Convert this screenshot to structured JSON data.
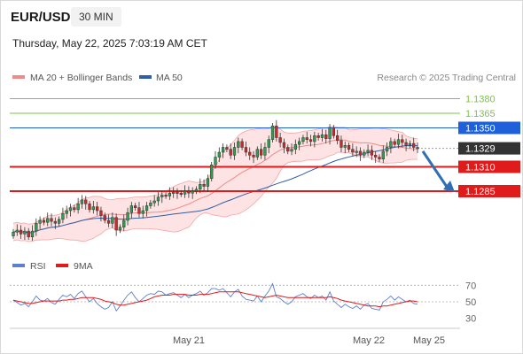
{
  "header": {
    "symbol": "EUR/USD",
    "timeframe": "30 MIN",
    "datetime": "Thursday, May 22, 2025 7:03:19 AM CET"
  },
  "research_note": "Research © 2025 Trading Central",
  "colors": {
    "bb_fill": "#fde3e3",
    "bb_edge": "#f5a5a5",
    "ma20": "#f08a8a",
    "ma50": "#2f5ea8",
    "candle_up": "#2e9e4f",
    "candle_down": "#cc2a2a",
    "resistance_green": "#7cc442",
    "pivot_blue": "#1f5fd8",
    "support_red": "#e01b1b",
    "current_price": "#333333",
    "arrow": "#2f6fb3",
    "rsi": "#5b7fd1",
    "rsi_ma": "#e01b1b"
  },
  "chart_data": [
    {
      "type": "candlestick",
      "title": "",
      "legend": [
        {
          "label": "MA 20 + Bollinger Bands",
          "color": "#f08a8a"
        },
        {
          "label": "MA 50",
          "color": "#2f5ea8"
        }
      ],
      "legend_position": "top-left",
      "ylim": [
        1.1215,
        1.1395
      ],
      "x_labels": [
        "May 21",
        "May 22",
        "May 25"
      ],
      "levels": [
        {
          "value": 1.138,
          "label": "1.1380",
          "kind": "resistance",
          "color": "#7cc442"
        },
        {
          "value": 1.1365,
          "label": "1.1365",
          "kind": "resistance",
          "color": "#7cc442"
        },
        {
          "value": 1.135,
          "label": "1.1350",
          "kind": "pivot",
          "color": "#1f5fd8"
        },
        {
          "value": 1.1329,
          "label": "1.1329",
          "kind": "current",
          "color": "#333333"
        },
        {
          "value": 1.131,
          "label": "1.1310",
          "kind": "support",
          "color": "#e01b1b"
        },
        {
          "value": 1.1285,
          "label": "1.1285",
          "kind": "support",
          "color": "#e01b1b"
        }
      ],
      "forecast_arrow": {
        "from": 1.1326,
        "to": 1.1285
      },
      "closes": [
        1.1243,
        1.1245,
        1.1241,
        1.1244,
        1.1238,
        1.1244,
        1.1252,
        1.1255,
        1.1253,
        1.1257,
        1.1254,
        1.1252,
        1.1256,
        1.1262,
        1.1265,
        1.1268,
        1.1266,
        1.1272,
        1.1276,
        1.1272,
        1.1266,
        1.1269,
        1.1265,
        1.126,
        1.1255,
        1.1252,
        1.1258,
        1.1245,
        1.1248,
        1.1255,
        1.1263,
        1.127,
        1.1268,
        1.1262,
        1.1265,
        1.127,
        1.1273,
        1.1275,
        1.1279,
        1.1281,
        1.128,
        1.1283,
        1.1284,
        1.1283,
        1.1282,
        1.1285,
        1.1283,
        1.1285,
        1.1287,
        1.1292,
        1.129,
        1.1298,
        1.1312,
        1.132,
        1.1325,
        1.133,
        1.1328,
        1.1322,
        1.133,
        1.1336,
        1.133,
        1.1325,
        1.1322,
        1.132,
        1.1328,
        1.1322,
        1.133,
        1.1338,
        1.1352,
        1.134,
        1.1335,
        1.133,
        1.1326,
        1.1328,
        1.1333,
        1.1336,
        1.134,
        1.1338,
        1.1336,
        1.1342,
        1.134,
        1.1343,
        1.1339,
        1.135,
        1.1342,
        1.1337,
        1.133,
        1.1332,
        1.1328,
        1.1325,
        1.1326,
        1.1322,
        1.1325,
        1.1327,
        1.1322,
        1.132,
        1.1318,
        1.1326,
        1.133,
        1.1336,
        1.1333,
        1.1338,
        1.1335,
        1.1332,
        1.1334,
        1.133,
        1.1329
      ]
    },
    {
      "type": "line",
      "title": "",
      "legend": [
        {
          "label": "RSI",
          "color": "#5b7fd1"
        },
        {
          "label": "9MA",
          "color": "#e01b1b"
        }
      ],
      "legend_position": "top-left",
      "ylim": [
        20,
        80
      ],
      "yticks": [
        70,
        50,
        30
      ],
      "reference_lines": [
        70,
        50
      ],
      "rsi": [
        52,
        49,
        46,
        48,
        44,
        50,
        57,
        52,
        51,
        54,
        49,
        47,
        53,
        58,
        56,
        59,
        54,
        60,
        63,
        56,
        50,
        54,
        48,
        44,
        41,
        43,
        50,
        39,
        45,
        52,
        58,
        62,
        55,
        50,
        54,
        58,
        60,
        59,
        63,
        62,
        58,
        60,
        61,
        58,
        55,
        59,
        55,
        58,
        60,
        63,
        58,
        61,
        66,
        66,
        64,
        66,
        61,
        56,
        62,
        65,
        57,
        53,
        52,
        51,
        57,
        50,
        57,
        63,
        72,
        56,
        54,
        50,
        47,
        50,
        56,
        58,
        60,
        56,
        54,
        58,
        55,
        57,
        52,
        62,
        51,
        47,
        43,
        47,
        44,
        42,
        45,
        41,
        46,
        48,
        42,
        41,
        40,
        50,
        53,
        57,
        52,
        56,
        53,
        50,
        52,
        48,
        47
      ],
      "rsi_ma": [
        52,
        51,
        50,
        49,
        48,
        48,
        49,
        50,
        51,
        51,
        51,
        51,
        51,
        52,
        52,
        53,
        53,
        54,
        55,
        55,
        55,
        55,
        54,
        53,
        51,
        50,
        49,
        47,
        46,
        46,
        47,
        48,
        49,
        50,
        51,
        52,
        54,
        56,
        57,
        58,
        58,
        58,
        59,
        59,
        59,
        59,
        58,
        58,
        58,
        59,
        59,
        59,
        60,
        61,
        62,
        62,
        62,
        62,
        62,
        62,
        61,
        60,
        59,
        58,
        57,
        56,
        55,
        56,
        57,
        58,
        57,
        56,
        55,
        55,
        55,
        55,
        55,
        55,
        55,
        55,
        55,
        55,
        55,
        56,
        55,
        54,
        52,
        51,
        50,
        49,
        48,
        47,
        46,
        45,
        45,
        45,
        44,
        45,
        45,
        46,
        47,
        48,
        49,
        50,
        51,
        51,
        50
      ]
    }
  ]
}
